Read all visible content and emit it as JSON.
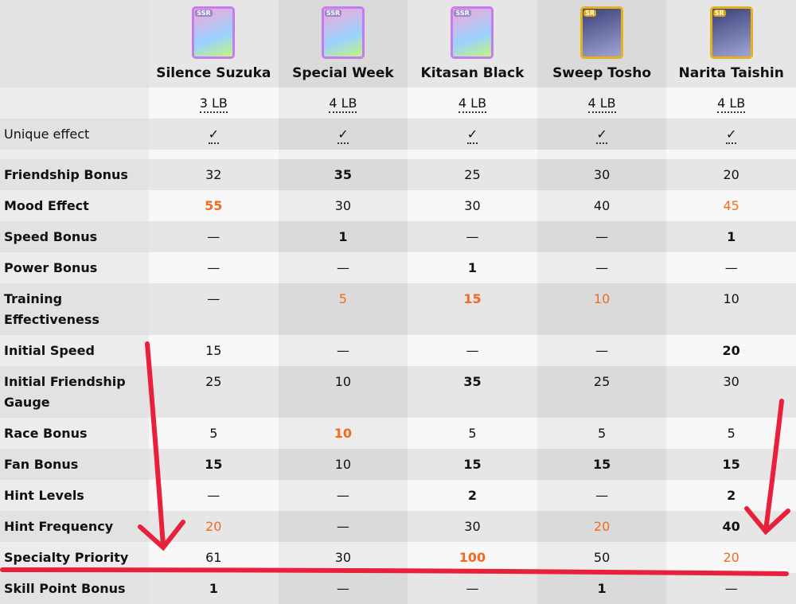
{
  "cards": [
    {
      "name": "Silence Suzuka",
      "rarity": "SSR",
      "lb": "3 LB",
      "unique": "✓"
    },
    {
      "name": "Special Week",
      "rarity": "SSR",
      "lb": "4 LB",
      "unique": "✓"
    },
    {
      "name": "Kitasan Black",
      "rarity": "SSR",
      "lb": "4 LB",
      "unique": "✓"
    },
    {
      "name": "Sweep Tosho",
      "rarity": "SR",
      "lb": "4 LB",
      "unique": "✓"
    },
    {
      "name": "Narita Taishin",
      "rarity": "SR",
      "lb": "4 LB",
      "unique": "✓"
    }
  ],
  "unique_label": "Unique effect",
  "highlight_color": "#f26b1d",
  "annotation_color": "#e8203a",
  "rows": [
    {
      "label": "Friendship Bonus",
      "values": [
        "32",
        "35",
        "25",
        "30",
        "20"
      ],
      "style": [
        "",
        "b",
        "",
        "",
        ""
      ]
    },
    {
      "label": "Mood Effect",
      "values": [
        "55",
        "30",
        "30",
        "40",
        "45"
      ],
      "style": [
        "ob",
        "",
        "",
        "",
        "o"
      ]
    },
    {
      "label": "Speed Bonus",
      "values": [
        "—",
        "1",
        "—",
        "—",
        "1"
      ],
      "style": [
        "",
        "b",
        "",
        "",
        "b"
      ]
    },
    {
      "label": "Power Bonus",
      "values": [
        "—",
        "—",
        "1",
        "—",
        "—"
      ],
      "style": [
        "",
        "",
        "b",
        "",
        ""
      ]
    },
    {
      "label": "Training Effectiveness",
      "values": [
        "—",
        "5",
        "15",
        "10",
        "10"
      ],
      "style": [
        "",
        "o",
        "ob",
        "o",
        ""
      ],
      "tall": true
    },
    {
      "label": "Initial Speed",
      "values": [
        "15",
        "—",
        "—",
        "—",
        "20"
      ],
      "style": [
        "",
        "",
        "",
        "",
        "b"
      ]
    },
    {
      "label": "Initial Friendship Gauge",
      "values": [
        "25",
        "10",
        "35",
        "25",
        "30"
      ],
      "style": [
        "",
        "",
        "b",
        "",
        ""
      ],
      "tall": true
    },
    {
      "label": "Race Bonus",
      "values": [
        "5",
        "10",
        "5",
        "5",
        "5"
      ],
      "style": [
        "",
        "ob",
        "",
        "",
        ""
      ]
    },
    {
      "label": "Fan Bonus",
      "values": [
        "15",
        "10",
        "15",
        "15",
        "15"
      ],
      "style": [
        "b",
        "",
        "b",
        "b",
        "b"
      ]
    },
    {
      "label": "Hint Levels",
      "values": [
        "—",
        "—",
        "2",
        "—",
        "2"
      ],
      "style": [
        "",
        "",
        "b",
        "",
        "b"
      ]
    },
    {
      "label": "Hint Frequency",
      "values": [
        "20",
        "—",
        "30",
        "20",
        "40"
      ],
      "style": [
        "o",
        "",
        "",
        "o",
        "b"
      ]
    },
    {
      "label": "Specialty Priority",
      "values": [
        "61",
        "30",
        "100",
        "50",
        "20"
      ],
      "style": [
        "",
        "",
        "ob",
        "",
        "o"
      ]
    },
    {
      "label": "Skill Point Bonus",
      "values": [
        "1",
        "—",
        "—",
        "1",
        "—"
      ],
      "style": [
        "b",
        "",
        "",
        "b",
        ""
      ]
    }
  ]
}
